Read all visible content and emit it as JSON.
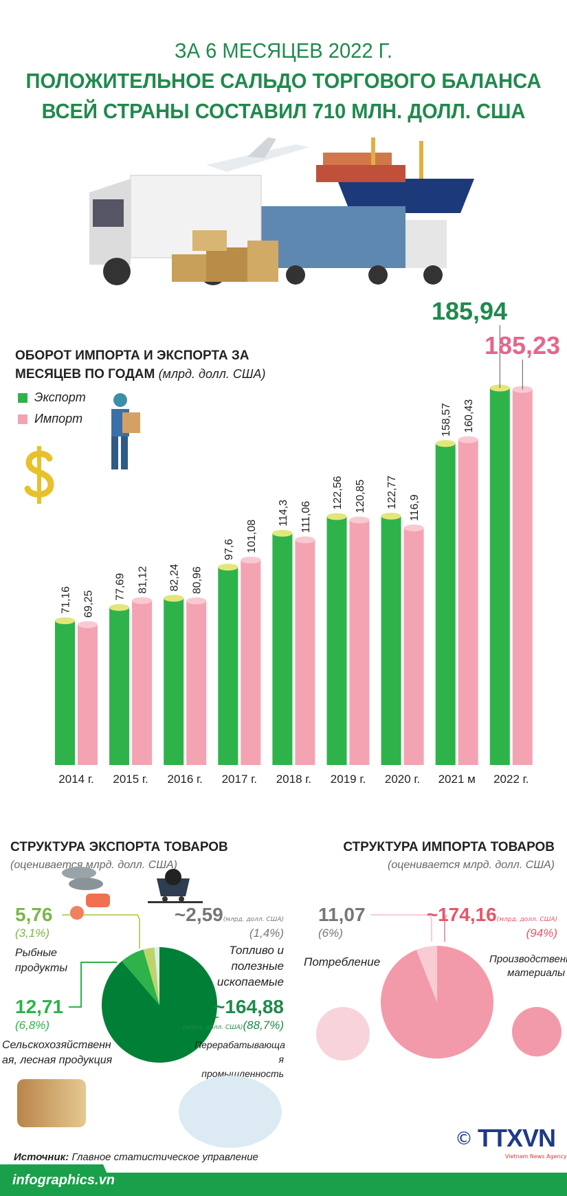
{
  "header": {
    "title_line1": "ЗА 6 МЕСЯЦЕВ 2022 Г.",
    "title_line2": "ПОЛОЖИТЕЛЬНОЕ САЛЬДО ТОРГОВОГО БАЛАНСА",
    "title_line3": "ВСЕЙ СТРАНЫ СОСТАВИЛ 710 МЛН. ДОЛЛ. США"
  },
  "colors": {
    "title": "#1f8a4c",
    "export": "#2db34a",
    "import": "#f4a3b3",
    "export_dark": "#008036"
  },
  "chart_data": {
    "type": "bar",
    "title_line1": "ОБОРОТ ИМПОРТА И ЭКСПОРТА ЗА",
    "title_line2": "МЕСЯЦЕВ ПО ГОДАМ",
    "unit": "(млрд. долл. США)",
    "categories": [
      "2014 г.",
      "2015 г.",
      "2016 г.",
      "2017 г.",
      "2018 г.",
      "2019 г.",
      "2020 г.",
      "2021 м",
      "2022 г."
    ],
    "series": [
      {
        "name": "Экспорт",
        "color": "#2db34a",
        "values": [
          71.16,
          77.69,
          82.24,
          97.6,
          114.3,
          122.56,
          122.77,
          158.57,
          185.94
        ],
        "labels": [
          "71,16",
          "77,69",
          "82,24",
          "97,6",
          "114,3",
          "122,56",
          "122,77",
          "158,57",
          "185,94"
        ]
      },
      {
        "name": "Импорт",
        "color": "#f4a3b3",
        "values": [
          69.25,
          81.12,
          80.96,
          101.08,
          111.06,
          120.85,
          116.9,
          160.43,
          185.23
        ],
        "labels": [
          "69,25",
          "81,12",
          "80,96",
          "101,08",
          "111,06",
          "120,85",
          "116,9",
          "160,43",
          "185,23"
        ]
      }
    ],
    "ylim": [
      0,
      190
    ],
    "grid": false,
    "legend": "top-left"
  },
  "export_structure": {
    "title": "СТРУКТУРА ЭКСПОРТА ТОВАРОВ",
    "subtitle": "(оценивается млрд. долл. США)",
    "unit_small": "(млрд. долл. США)",
    "slices": [
      {
        "name": "Перерабатывающая промышленность",
        "label": "Перерабатывающа я промышленность",
        "value": "~164,88",
        "pct": "(88,7%)",
        "percent": 88.7,
        "color": "#008036"
      },
      {
        "name": "Сельскохозяйственная, лесная продукция",
        "label": "Сельскохозяйственн ая, лесная продукция",
        "value": "12,71",
        "pct": "(6,8%)",
        "percent": 6.8,
        "color": "#2db34a"
      },
      {
        "name": "Рыбные продукты",
        "label": "Рыбные продукты",
        "value": "5,76",
        "pct": "(3,1%)",
        "percent": 3.1,
        "color": "#bcd46b"
      },
      {
        "name": "Топливо и полезные ископаемые",
        "label": "Топливо и полезные ископаемые",
        "value": "~2,59",
        "pct": "(1,4%)",
        "percent": 1.4,
        "color": "#dfeee6"
      }
    ]
  },
  "import_structure": {
    "title": "СТРУКТУРА ИМПОРТА ТОВАРОВ",
    "subtitle": "(оценивается млрд. долл. США)",
    "unit_small": "(млрд. долл. США)",
    "slices": [
      {
        "label": "Производственные материалы",
        "value": "~174,16",
        "pct": "(94%)",
        "percent": 94,
        "color": "#f29aaa"
      },
      {
        "label": "Потребление",
        "value": "11,07",
        "pct": "(6%)",
        "percent": 6,
        "color": "#f9ccd4"
      }
    ]
  },
  "footer": {
    "source_label": "Источник:",
    "source_text": "Главное статистическое управление",
    "site": "infographics.vn",
    "logo": "TTXVN",
    "logo_sub": "Vietnam News Agency",
    "copyright": "©"
  }
}
